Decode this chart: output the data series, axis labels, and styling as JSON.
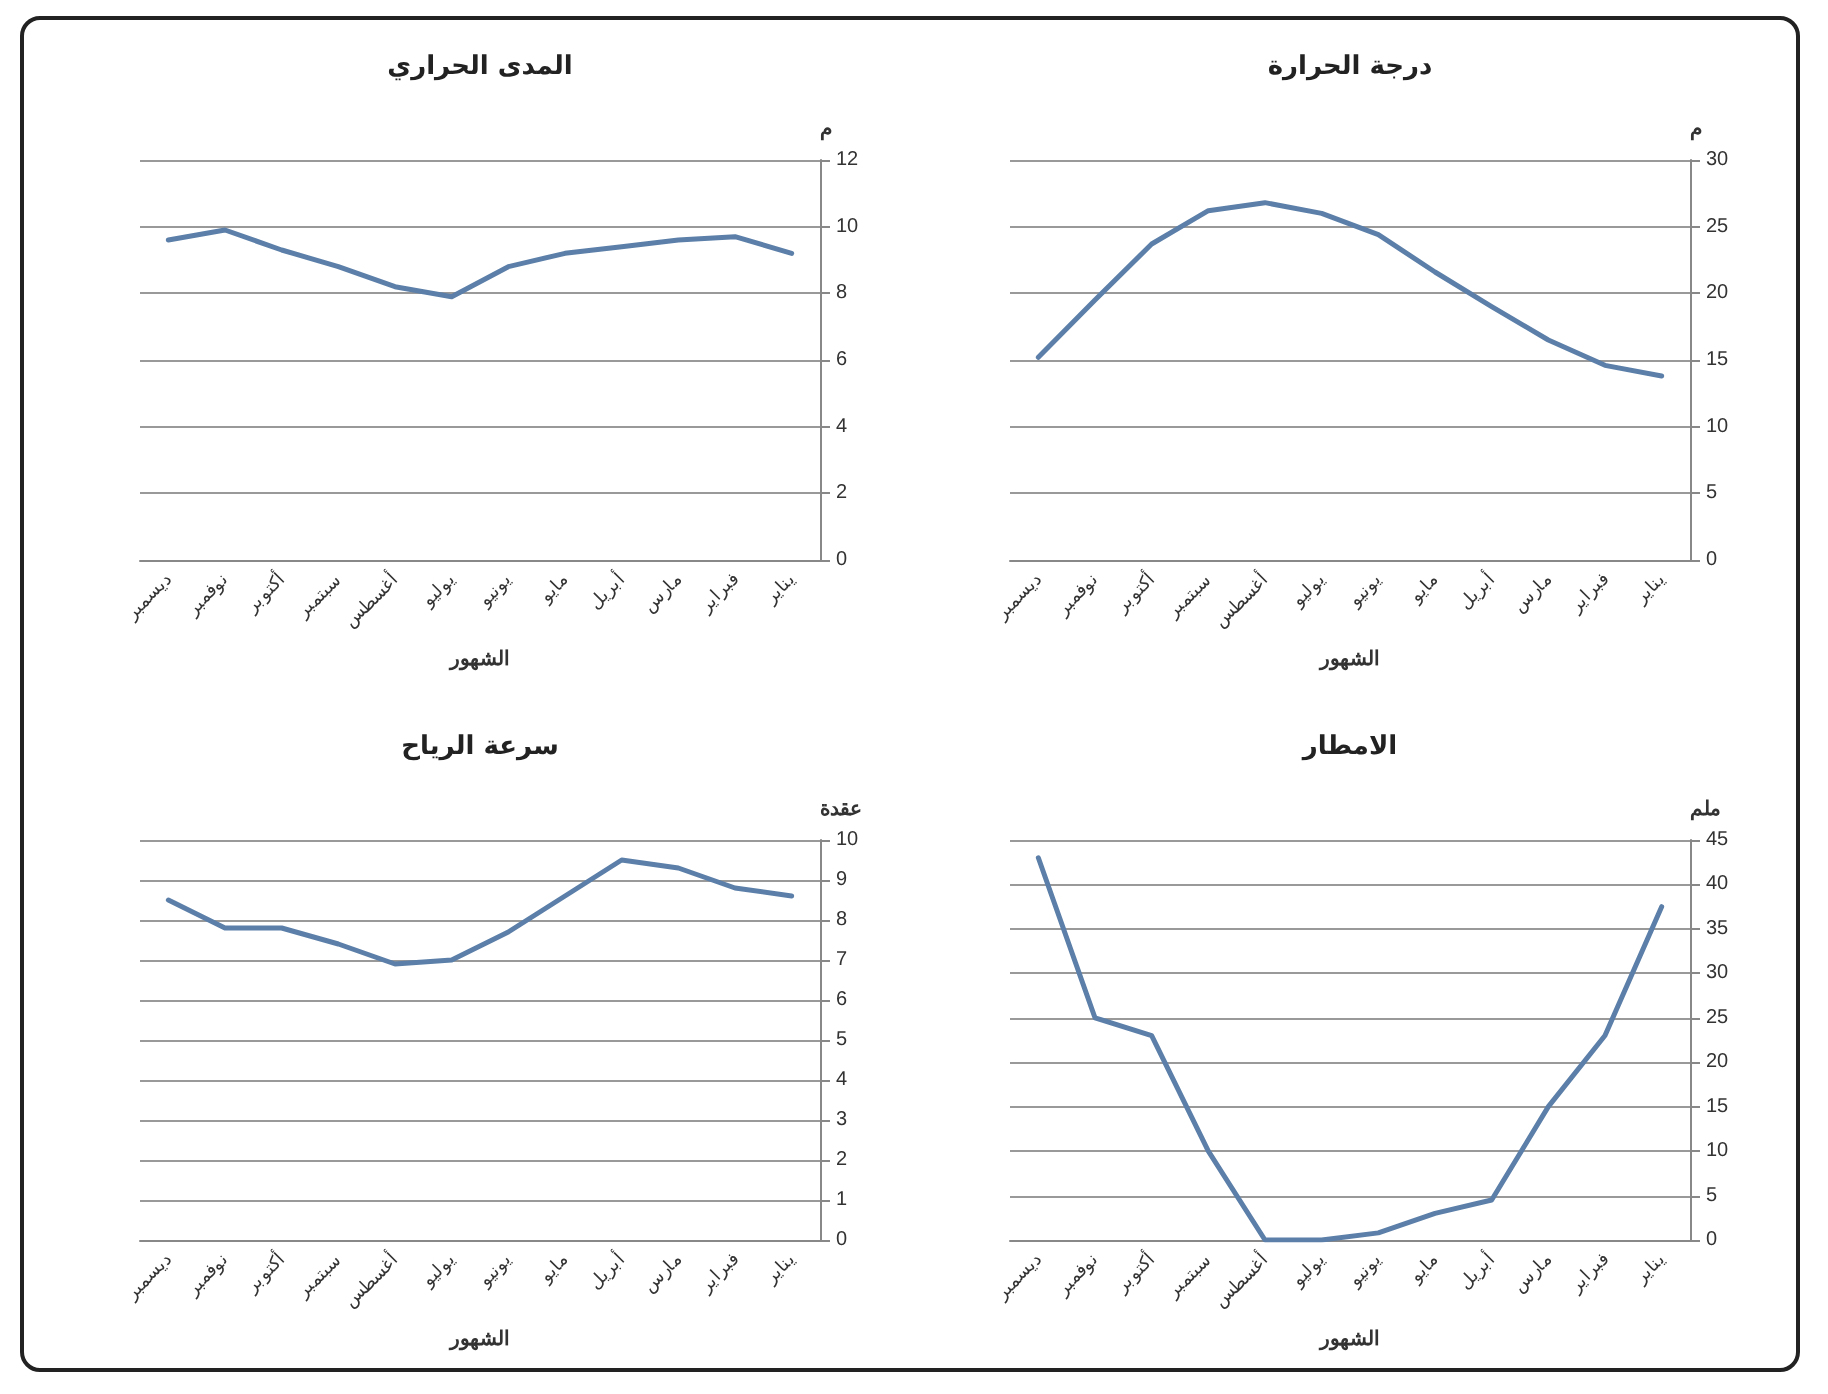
{
  "chart_data": [
    {
      "type": "line",
      "title": "المدى الحراري",
      "xlabel": "الشهور",
      "ylabel": "م",
      "categories": [
        "ديسمبر",
        "نوفمبر",
        "أكتوبر",
        "سبتمبر",
        "أغسطس",
        "يوليو",
        "يونيو",
        "مايو",
        "أبريل",
        "مارس",
        "فبراير",
        "يناير"
      ],
      "series": [
        {
          "color": "#5b7fa8",
          "values": [
            9.6,
            9.9,
            9.3,
            8.8,
            8.2,
            7.9,
            8.8,
            9.2,
            9.4,
            9.6,
            9.7,
            9.2
          ]
        }
      ],
      "ylim": [
        0,
        12
      ],
      "yticks": [
        0,
        2,
        4,
        6,
        8,
        10,
        12
      ],
      "grid": "y",
      "marker": "none",
      "line_style": "solid"
    },
    {
      "type": "line",
      "title": "درجة الحرارة",
      "xlabel": "الشهور",
      "ylabel": "م",
      "categories": [
        "ديسمبر",
        "نوفمبر",
        "أكتوبر",
        "سبتمبر",
        "أغسطس",
        "يوليو",
        "يونيو",
        "مايو",
        "أبريل",
        "مارس",
        "فبراير",
        "يناير"
      ],
      "series": [
        {
          "color": "#5b7fa8",
          "values": [
            15.2,
            19.5,
            23.7,
            26.2,
            26.8,
            26,
            24.4,
            21.6,
            19,
            16.5,
            14.6,
            13.8
          ]
        }
      ],
      "ylim": [
        0,
        30
      ],
      "yticks": [
        0,
        5,
        10,
        15,
        20,
        25,
        30
      ],
      "grid": "y",
      "marker": "none",
      "line_style": "solid"
    },
    {
      "type": "line",
      "title": "سرعة الرياح",
      "xlabel": "الشهور",
      "ylabel": "عقدة",
      "categories": [
        "ديسمبر",
        "نوفمبر",
        "أكتوبر",
        "سبتمبر",
        "أغسطس",
        "يوليو",
        "يونيو",
        "مايو",
        "أبريل",
        "مارس",
        "فبراير",
        "يناير"
      ],
      "series": [
        {
          "color": "#5b7fa8",
          "values": [
            8.5,
            7.8,
            7.8,
            7.4,
            6.9,
            7.0,
            7.7,
            8.6,
            9.5,
            9.3,
            8.8,
            8.6
          ]
        }
      ],
      "ylim": [
        0,
        10
      ],
      "yticks": [
        0,
        1,
        2,
        3,
        4,
        5,
        6,
        7,
        8,
        9,
        10
      ],
      "grid": "y",
      "marker": "none",
      "line_style": "solid"
    },
    {
      "type": "line",
      "title": "الامطار",
      "xlabel": "الشهور",
      "ylabel": "ملم",
      "categories": [
        "ديسمبر",
        "نوفمبر",
        "أكتوبر",
        "سبتمبر",
        "أغسطس",
        "يوليو",
        "يونيو",
        "مايو",
        "أبريل",
        "مارس",
        "فبراير",
        "يناير"
      ],
      "series": [
        {
          "color": "#5b7fa8",
          "values": [
            43,
            25,
            23,
            10,
            0,
            0,
            0.8,
            3,
            4.5,
            15,
            23,
            37.5
          ]
        }
      ],
      "ylim": [
        0,
        45
      ],
      "yticks": [
        0,
        5,
        10,
        15,
        20,
        25,
        30,
        35,
        40,
        45
      ],
      "grid": "y",
      "marker": "none",
      "line_style": "solid"
    }
  ]
}
